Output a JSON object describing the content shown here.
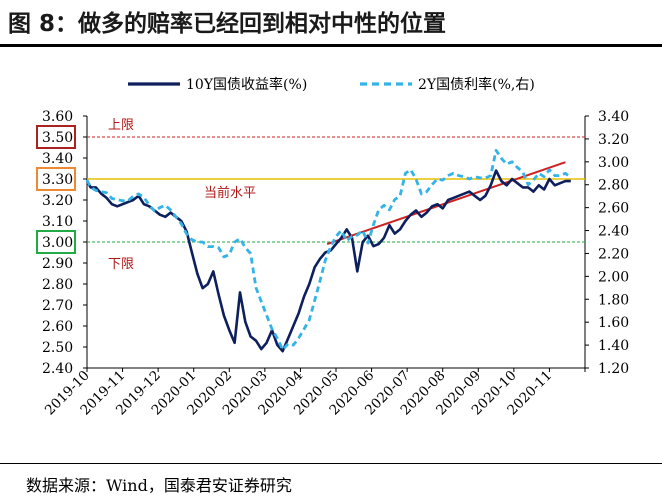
{
  "title": "图 8：做多的赔率已经回到相对中性的位置",
  "source": "数据来源：Wind，国泰君安证券研究",
  "chart_data": {
    "type": "line",
    "title": "图 8：做多的赔率已经回到相对中性的位置",
    "x_categories": [
      "2019-10",
      "2019-11",
      "2019-12",
      "2020-01",
      "2020-02",
      "2020-03",
      "2020-04",
      "2020-05",
      "2020-06",
      "2020-07",
      "2020-08",
      "2020-09",
      "2020-10",
      "2020-11"
    ],
    "y_left": {
      "ticks": [
        "2.40",
        "2.50",
        "2.60",
        "2.70",
        "2.80",
        "2.90",
        "3.00",
        "3.10",
        "3.20",
        "3.30",
        "3.40",
        "3.50",
        "3.60"
      ],
      "min": 2.4,
      "max": 3.6
    },
    "y_right": {
      "ticks": [
        "1.20",
        "1.40",
        "1.60",
        "1.80",
        "2.00",
        "2.20",
        "2.40",
        "2.60",
        "2.80",
        "3.00",
        "3.20",
        "3.40"
      ],
      "min": 1.2,
      "max": 3.4
    },
    "legend": {
      "placement": "top-center"
    },
    "series": [
      {
        "name": "10Y国债收益率(%)",
        "axis": "left",
        "color": "#0d1f5c",
        "style": "solid",
        "x": [
          0,
          0.1,
          0.25,
          0.4,
          0.55,
          0.7,
          0.85,
          1.0,
          1.15,
          1.3,
          1.45,
          1.6,
          1.75,
          1.9,
          2.05,
          2.2,
          2.35,
          2.5,
          2.65,
          2.8,
          2.95,
          3.1,
          3.25,
          3.4,
          3.55,
          3.7,
          3.85,
          4.0,
          4.15,
          4.3,
          4.45,
          4.6,
          4.75,
          4.9,
          5.05,
          5.2,
          5.35,
          5.5,
          5.65,
          5.8,
          5.95,
          6.1,
          6.25,
          6.4,
          6.55,
          6.7,
          6.85,
          7.0,
          7.15,
          7.3,
          7.45,
          7.6,
          7.75,
          7.9,
          8.05,
          8.2,
          8.35,
          8.5,
          8.65,
          8.8,
          8.95,
          9.1,
          9.25,
          9.4,
          9.55,
          9.7,
          9.85,
          10.0,
          10.15,
          10.3,
          10.45,
          10.6,
          10.75,
          10.9,
          11.05,
          11.2,
          11.35,
          11.5,
          11.65,
          11.8,
          11.95,
          12.1,
          12.25,
          12.4,
          12.55,
          12.7,
          12.85,
          13.0,
          13.15,
          13.3,
          13.45,
          13.6
        ],
        "values": [
          3.29,
          3.26,
          3.26,
          3.23,
          3.21,
          3.18,
          3.17,
          3.18,
          3.19,
          3.2,
          3.22,
          3.18,
          3.17,
          3.15,
          3.13,
          3.12,
          3.14,
          3.12,
          3.1,
          3.05,
          2.95,
          2.85,
          2.78,
          2.8,
          2.86,
          2.75,
          2.65,
          2.58,
          2.52,
          2.76,
          2.62,
          2.55,
          2.53,
          2.49,
          2.52,
          2.58,
          2.51,
          2.48,
          2.54,
          2.6,
          2.66,
          2.74,
          2.8,
          2.88,
          2.92,
          2.95,
          2.96,
          2.99,
          3.02,
          3.06,
          3.02,
          2.86,
          3.0,
          3.03,
          2.98,
          2.99,
          3.02,
          3.08,
          3.04,
          3.06,
          3.1,
          3.13,
          3.15,
          3.12,
          3.14,
          3.17,
          3.18,
          3.16,
          3.2,
          3.21,
          3.22,
          3.23,
          3.24,
          3.22,
          3.2,
          3.22,
          3.27,
          3.34,
          3.29,
          3.27,
          3.3,
          3.28,
          3.26,
          3.26,
          3.24,
          3.27,
          3.25,
          3.3,
          3.27,
          3.28,
          3.29,
          3.29
        ]
      },
      {
        "name": "2Y国债利率(%,右)",
        "axis": "right",
        "color": "#33b3e6",
        "style": "dashed",
        "x": [
          0,
          0.1,
          0.25,
          0.4,
          0.55,
          0.7,
          0.85,
          1.0,
          1.15,
          1.3,
          1.45,
          1.6,
          1.75,
          1.9,
          2.05,
          2.2,
          2.35,
          2.5,
          2.65,
          2.8,
          2.95,
          3.1,
          3.25,
          3.4,
          3.55,
          3.7,
          3.85,
          4.0,
          4.15,
          4.3,
          4.45,
          4.6,
          4.75,
          4.9,
          5.05,
          5.2,
          5.35,
          5.5,
          5.65,
          5.8,
          5.95,
          6.1,
          6.25,
          6.4,
          6.55,
          6.7,
          6.85,
          7.0,
          7.15,
          7.3,
          7.45,
          7.6,
          7.75,
          7.9,
          8.05,
          8.2,
          8.35,
          8.5,
          8.65,
          8.8,
          8.95,
          9.1,
          9.25,
          9.4,
          9.55,
          9.7,
          9.85,
          10.0,
          10.15,
          10.3,
          10.45,
          10.6,
          10.75,
          10.9,
          11.05,
          11.2,
          11.35,
          11.5,
          11.65,
          11.8,
          11.95,
          12.1,
          12.25,
          12.4,
          12.55,
          12.7,
          12.85,
          13.0,
          13.15,
          13.3,
          13.45,
          13.6
        ],
        "values": [
          2.84,
          2.78,
          2.75,
          2.74,
          2.73,
          2.68,
          2.67,
          2.66,
          2.66,
          2.7,
          2.72,
          2.69,
          2.62,
          2.57,
          2.6,
          2.62,
          2.58,
          2.52,
          2.46,
          2.37,
          2.32,
          2.3,
          2.3,
          2.26,
          2.26,
          2.25,
          2.17,
          2.19,
          2.3,
          2.33,
          2.25,
          2.2,
          1.9,
          1.78,
          1.66,
          1.54,
          1.46,
          1.36,
          1.41,
          1.4,
          1.46,
          1.54,
          1.62,
          1.79,
          1.96,
          2.14,
          2.26,
          2.35,
          2.4,
          2.31,
          2.35,
          2.36,
          2.4,
          2.29,
          2.45,
          2.58,
          2.62,
          2.58,
          2.67,
          2.7,
          2.9,
          2.93,
          2.85,
          2.72,
          2.74,
          2.8,
          2.85,
          2.84,
          2.88,
          2.9,
          2.88,
          2.87,
          2.85,
          2.87,
          2.86,
          2.86,
          2.88,
          3.1,
          3.03,
          2.98,
          3.0,
          2.95,
          2.91,
          2.8,
          2.84,
          2.9,
          2.87,
          2.93,
          2.88,
          2.88,
          2.9,
          2.86
        ]
      }
    ],
    "reference_lines": [
      {
        "label": "上限",
        "value": 3.5,
        "color": "#cc2020",
        "style": "dashed"
      },
      {
        "label": "当前水平",
        "value": 3.3,
        "color": "#e6c000",
        "style": "solid"
      },
      {
        "label": "下限",
        "value": 3.0,
        "color": "#22aa44",
        "style": "dashed"
      }
    ],
    "trend_line": {
      "color": "#cc2222",
      "from": [
        6.75,
        2.99
      ],
      "to": [
        13.45,
        3.38
      ]
    },
    "highlighted_ticks": [
      {
        "label": "3.50",
        "border_color": "#aa2222"
      },
      {
        "label": "3.30",
        "border_color": "#ee8833"
      },
      {
        "label": "3.00",
        "border_color": "#22aa44"
      }
    ]
  }
}
